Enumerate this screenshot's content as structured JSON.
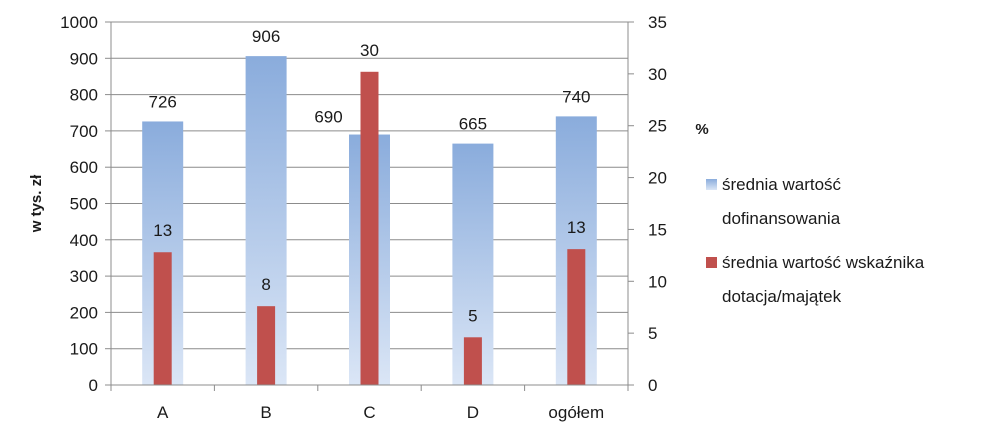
{
  "chart_data": {
    "type": "bar",
    "categories": [
      "A",
      "B",
      "C",
      "D",
      "ogółem"
    ],
    "series": [
      {
        "name": "średnia wartość dofinansowania",
        "axis": "left",
        "color": "#8fb0de",
        "values": [
          726,
          906,
          690,
          665,
          740
        ],
        "data_labels": [
          "726",
          "906",
          "690",
          "665",
          "740"
        ]
      },
      {
        "name": "średnia wartość wskaźnika dotacja/majątek",
        "axis": "right",
        "color": "#c0504d",
        "values": [
          12.8,
          7.6,
          30.2,
          4.6,
          13.1
        ],
        "data_labels": [
          "13",
          "8",
          "30",
          "5",
          "13"
        ]
      }
    ],
    "ylabel": "w tys. zł",
    "ylabel_right": "%",
    "ylim": [
      0,
      1000
    ],
    "ylim_right": [
      0,
      35
    ],
    "yticks": [
      "0",
      "100",
      "200",
      "300",
      "400",
      "500",
      "600",
      "700",
      "800",
      "900",
      "1000"
    ],
    "yticks_right": [
      "0",
      "5",
      "10",
      "15",
      "20",
      "25",
      "30",
      "35"
    ],
    "legend": {
      "position": "right",
      "lines": [
        [
          "średnia wartość",
          "dofinansowania"
        ],
        [
          "średnia wartość wskaźnika",
          "dotacja/majątek"
        ]
      ]
    },
    "grid": true
  }
}
